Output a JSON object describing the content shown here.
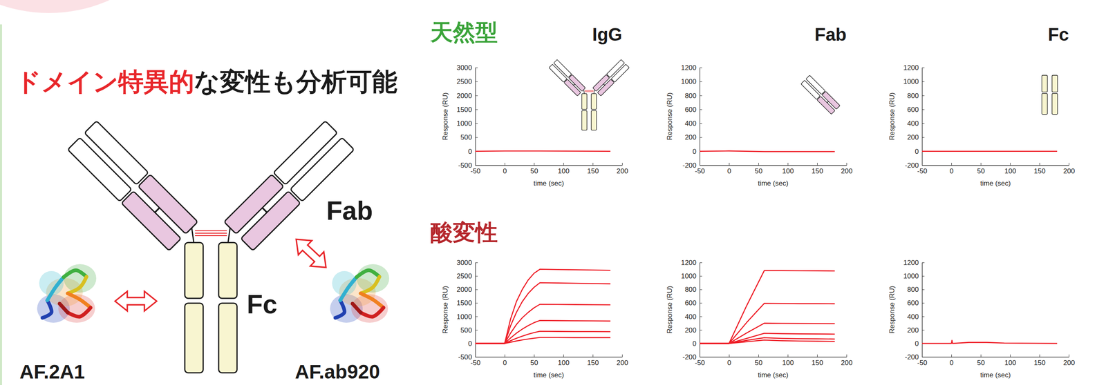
{
  "diagram": {
    "title": [
      {
        "text": "ドメイン特異的",
        "color": "#e8262a"
      },
      {
        "text": "な変性も分析可能",
        "color": "#1a1a1a"
      }
    ],
    "labels": {
      "fab": "Fab",
      "fc": "Fc"
    },
    "binders": [
      "AF.2A1",
      "AF.ab920"
    ]
  },
  "row_labels": [
    {
      "text": "天然型",
      "color": "#3aa339"
    },
    {
      "text": "酸変性",
      "color": "#b5262b"
    }
  ],
  "chart_data": [
    {
      "type": "line",
      "title": "IgG",
      "xlabel": "time (sec)",
      "ylabel": "Response (RU)",
      "xlim": [
        -50,
        200
      ],
      "xticks": [
        -50,
        0,
        50,
        100,
        150,
        200
      ],
      "ylim": [
        -500,
        3000
      ],
      "yticks": [
        -500,
        0,
        500,
        1000,
        1500,
        2000,
        2500,
        3000
      ],
      "x": [
        -50,
        0,
        60,
        180
      ],
      "series": [
        {
          "color": "#ee1c25",
          "values": [
            0,
            10,
            10,
            0
          ]
        }
      ]
    },
    {
      "type": "line",
      "title": "Fab",
      "xlabel": "time (sec)",
      "ylabel": "Response (RU)",
      "xlim": [
        -50,
        200
      ],
      "xticks": [
        -50,
        0,
        50,
        100,
        150,
        200
      ],
      "ylim": [
        -200,
        1200
      ],
      "yticks": [
        -200,
        0,
        200,
        400,
        600,
        800,
        1000,
        1200
      ],
      "x": [
        -50,
        0,
        60,
        180
      ],
      "series": [
        {
          "color": "#ee1c25",
          "values": [
            0,
            5,
            -5,
            -5
          ]
        }
      ]
    },
    {
      "type": "line",
      "title": "Fc",
      "xlabel": "time (sec)",
      "ylabel": "Response (RU)",
      "xlim": [
        -50,
        200
      ],
      "xticks": [
        -50,
        0,
        50,
        100,
        150,
        200
      ],
      "ylim": [
        -200,
        1200
      ],
      "yticks": [
        -200,
        0,
        200,
        400,
        600,
        800,
        1000,
        1200
      ],
      "x": [
        -50,
        0,
        60,
        180
      ],
      "series": [
        {
          "color": "#ee1c25",
          "values": [
            0,
            0,
            0,
            0
          ]
        }
      ]
    },
    {
      "type": "line",
      "xlabel": "time (sec)",
      "ylabel": "Response (RU)",
      "xlim": [
        -50,
        200
      ],
      "xticks": [
        -50,
        0,
        50,
        100,
        150,
        200
      ],
      "ylim": [
        -500,
        3000
      ],
      "yticks": [
        -500,
        0,
        500,
        1000,
        1500,
        2000,
        2500,
        3000
      ],
      "x": [
        -50,
        0,
        10,
        20,
        30,
        40,
        50,
        60,
        90,
        120,
        150,
        180
      ],
      "series": [
        {
          "color": "#ee1c25",
          "values": [
            0,
            0,
            900,
            1550,
            2000,
            2350,
            2600,
            2750,
            2740,
            2730,
            2720,
            2710
          ]
        },
        {
          "color": "#ee1c25",
          "values": [
            0,
            0,
            650,
            1150,
            1550,
            1850,
            2080,
            2250,
            2240,
            2230,
            2220,
            2210
          ]
        },
        {
          "color": "#ee1c25",
          "values": [
            0,
            0,
            380,
            700,
            950,
            1150,
            1320,
            1450,
            1445,
            1440,
            1435,
            1430
          ]
        },
        {
          "color": "#ee1c25",
          "values": [
            0,
            0,
            200,
            380,
            530,
            660,
            770,
            850,
            845,
            840,
            835,
            830
          ]
        },
        {
          "color": "#ee1c25",
          "values": [
            0,
            0,
            100,
            190,
            270,
            340,
            400,
            450,
            445,
            440,
            440,
            435
          ]
        },
        {
          "color": "#ee1c25",
          "values": [
            0,
            0,
            45,
            90,
            130,
            165,
            195,
            220,
            220,
            215,
            215,
            215
          ]
        }
      ]
    },
    {
      "type": "line",
      "xlabel": "time (sec)",
      "ylabel": "Response (RU)",
      "xlim": [
        -50,
        200
      ],
      "xticks": [
        -50,
        0,
        50,
        100,
        150,
        200
      ],
      "ylim": [
        -200,
        1200
      ],
      "yticks": [
        -200,
        0,
        200,
        400,
        600,
        800,
        1000,
        1200
      ],
      "x": [
        -50,
        0,
        30,
        60,
        90,
        120,
        150,
        180
      ],
      "series": [
        {
          "color": "#ee1c25",
          "values": [
            0,
            0,
            560,
            1080,
            1080,
            1078,
            1077,
            1075
          ]
        },
        {
          "color": "#ee1c25",
          "values": [
            0,
            0,
            310,
            595,
            592,
            590,
            590,
            588
          ]
        },
        {
          "color": "#ee1c25",
          "values": [
            0,
            0,
            155,
            300,
            298,
            296,
            295,
            293
          ]
        },
        {
          "color": "#ee1c25",
          "values": [
            0,
            0,
            75,
            150,
            145,
            142,
            140,
            138
          ]
        },
        {
          "color": "#ee1c25",
          "values": [
            0,
            0,
            45,
            85,
            75,
            70,
            68,
            65
          ]
        },
        {
          "color": "#ee1c25",
          "values": [
            0,
            0,
            25,
            50,
            40,
            35,
            33,
            30
          ]
        }
      ]
    },
    {
      "type": "line",
      "xlabel": "time (sec)",
      "ylabel": "Response (RU)",
      "xlim": [
        -50,
        200
      ],
      "xticks": [
        -50,
        0,
        50,
        100,
        150,
        200
      ],
      "ylim": [
        -200,
        1200
      ],
      "yticks": [
        -200,
        0,
        200,
        400,
        600,
        800,
        1000,
        1200
      ],
      "x": [
        -50,
        0,
        1,
        2,
        30,
        60,
        90,
        180
      ],
      "series": [
        {
          "color": "#ee1c25",
          "values": [
            0,
            0,
            45,
            0,
            15,
            15,
            5,
            0
          ]
        }
      ]
    }
  ]
}
